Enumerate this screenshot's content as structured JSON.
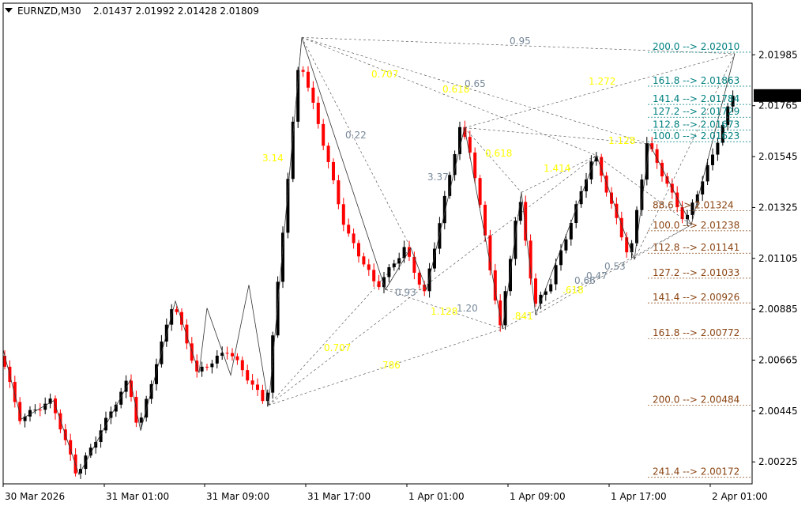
{
  "header": {
    "symbol": "EURNZD,M30",
    "ohlc": "2.01437 2.01992 2.01428 2.01809"
  },
  "current_price": "2.01809",
  "colors": {
    "bull": "#000000",
    "bear": "#ff0000",
    "fib_upper": "#008080",
    "fib_lower": "#8b4513",
    "ratio_yellow": "#ffff00",
    "ratio_gray": "#778899",
    "price_tag_bg": "#000000"
  },
  "chart_data": {
    "type": "candlestick",
    "y_ticks": [
      "2.01985",
      "2.01765",
      "2.01545",
      "2.01325",
      "2.01105",
      "2.00885",
      "2.00665",
      "2.00445",
      "2.00225"
    ],
    "x_ticks": [
      "30 Mar 2026",
      "31 Mar 01:00",
      "31 Mar 09:00",
      "31 Mar 17:00",
      "1 Apr 01:00",
      "1 Apr 09:00",
      "1 Apr 17:00",
      "2 Apr 01:00"
    ],
    "ylim": [
      2.0013,
      2.0214
    ],
    "fib_levels_upper": [
      {
        "label": "200.0  --> 2.02010",
        "price": 2.0201
      },
      {
        "label": "161.8  --> 2.01863",
        "price": 2.01863
      },
      {
        "label": "141.4  --> 2.01784",
        "price": 2.01784
      },
      {
        "label": "127.2  --> 2.01729",
        "price": 2.01729
      },
      {
        "label": "112.8  --> 2.01673",
        "price": 2.01673
      },
      {
        "label": "100.0  --> 2.01623",
        "price": 2.01623
      }
    ],
    "fib_levels_lower": [
      {
        "label": "88.6  --> 2.01324",
        "price": 2.01324
      },
      {
        "label": "100.0  --> 2.01238",
        "price": 2.01238
      },
      {
        "label": "112.8  --> 2.01141",
        "price": 2.01141
      },
      {
        "label": "127.2  --> 2.01033",
        "price": 2.01033
      },
      {
        "label": "141.4  --> 2.00926",
        "price": 2.00926
      },
      {
        "label": "161.8  --> 2.00772",
        "price": 2.00772
      },
      {
        "label": "200.0  --> 2.00484",
        "price": 2.00484
      },
      {
        "label": "241.4  --> 2.00172",
        "price": 2.00172
      }
    ],
    "ratio_labels": [
      {
        "text": "0.95",
        "color": "gray"
      },
      {
        "text": "0.707",
        "color": "yellow"
      },
      {
        "text": "0.618",
        "color": "yellow"
      },
      {
        "text": "0.65",
        "color": "gray"
      },
      {
        "text": "1.272",
        "color": "yellow"
      },
      {
        "text": "0.22",
        "color": "gray"
      },
      {
        "text": "3.14",
        "color": "yellow"
      },
      {
        "text": "3.37",
        "color": "gray"
      },
      {
        "text": "0.618",
        "color": "yellow"
      },
      {
        "text": "1.414",
        "color": "yellow"
      },
      {
        "text": "1.128",
        "color": "yellow"
      },
      {
        "text": "0.93",
        "color": "gray"
      },
      {
        "text": "1.128",
        "color": "yellow"
      },
      {
        "text": "1.20",
        "color": "gray"
      },
      {
        "text": "0.707",
        "color": "yellow"
      },
      {
        "text": ".786",
        "color": "yellow"
      },
      {
        "text": ".841",
        "color": "yellow"
      },
      {
        "text": ".618",
        "color": "yellow"
      },
      {
        "text": "0.47",
        "color": "gray"
      },
      {
        "text": "0.66",
        "color": "gray"
      },
      {
        "text": "0.53",
        "color": "gray"
      }
    ]
  }
}
